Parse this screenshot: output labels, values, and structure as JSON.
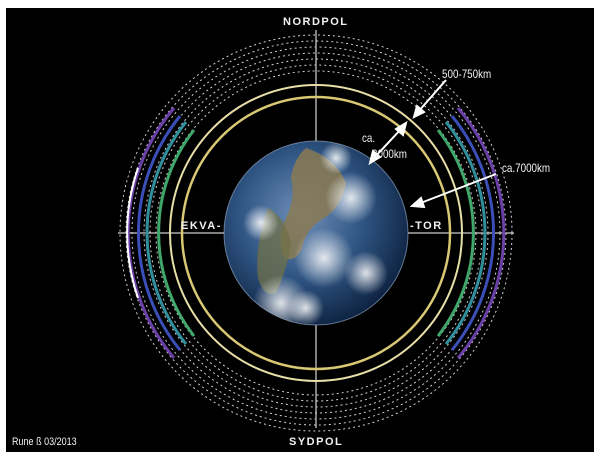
{
  "labels": {
    "north": "NORDPOL",
    "south": "SYDPOL",
    "equator_left": "EKVA-",
    "equator_right": "-TOR",
    "outer_belt": "500-750km",
    "inner_ca": "ca.",
    "inner_belt": "3000km",
    "mid_belt": "ca.7000km",
    "credit": "Rune ß 03/2013"
  },
  "colors": {
    "background": "#000000",
    "inner_ring": "#d9c873",
    "second_ring": "#e8dfa8",
    "band_green": "#3fa76a",
    "band_teal": "#2f8f9c",
    "band_blue": "#3a4fb8",
    "band_purple": "#6a3fa8",
    "dotted_rings": "#cfcfcf",
    "axes": "#ffffff"
  }
}
